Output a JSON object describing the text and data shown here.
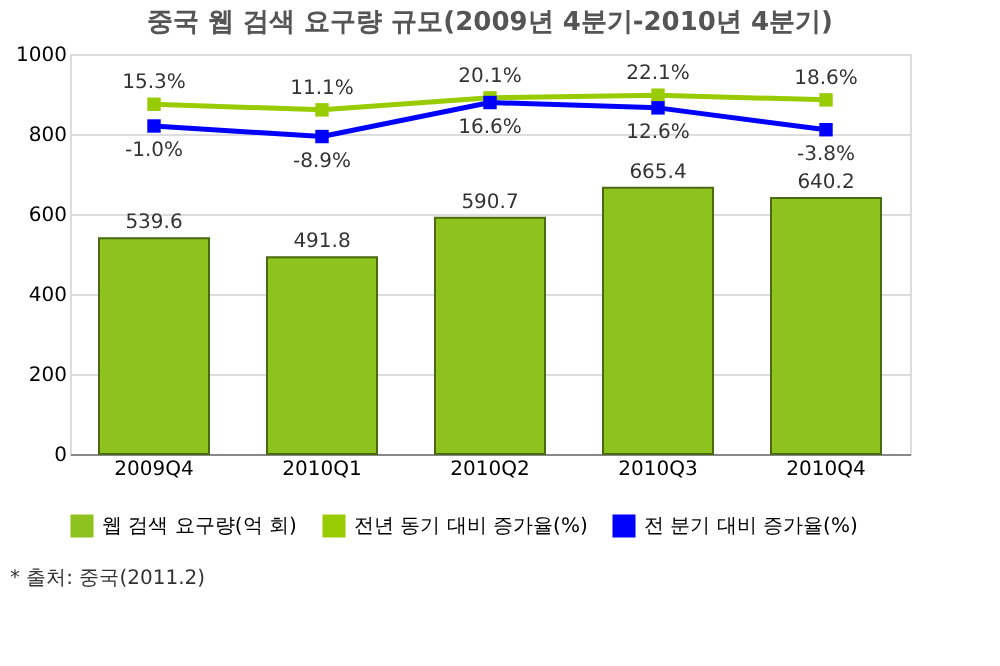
{
  "chart_data": {
    "type": "bar",
    "title": "중국 웹 검색 요구량 규모(2009년 4분기-2010년 4분기)",
    "categories": [
      "2009Q4",
      "2010Q1",
      "2010Q2",
      "2010Q3",
      "2010Q4"
    ],
    "series": [
      {
        "name": "웹 검색 요구량(억 회)",
        "color": "#8dc21f",
        "values": [
          539.6,
          491.8,
          590.7,
          665.4,
          640.2
        ],
        "data_labels": true
      },
      {
        "name": "전년 동기 대비 증가율(%)",
        "type": "line",
        "axis": "y2",
        "color": "#99cc00",
        "marker": "square",
        "values": [
          15.3,
          11.1,
          20.1,
          22.1,
          18.6
        ],
        "value_labels": [
          "15.3%",
          "11.1%",
          "20.1%",
          "22.1%",
          "18.6%"
        ]
      },
      {
        "name": "전 분기 대비 증가율(%)",
        "type": "line",
        "axis": "y2",
        "color": "#0000ff",
        "marker": "square",
        "values": [
          -1.0,
          -8.9,
          16.6,
          12.6,
          -3.8
        ],
        "value_labels": [
          "-1.0%",
          "-8.9%",
          "16.6%",
          "12.6%",
          "-3.8%"
        ]
      }
    ],
    "ylim": [
      0,
      1000
    ],
    "yticks": [
      0,
      200,
      400,
      600,
      800,
      1000
    ],
    "y2lim": [
      -247,
      53
    ],
    "grid": "y",
    "legend": "bottom",
    "annotations": [
      "* 출처: 중국(2011.2)"
    ]
  }
}
